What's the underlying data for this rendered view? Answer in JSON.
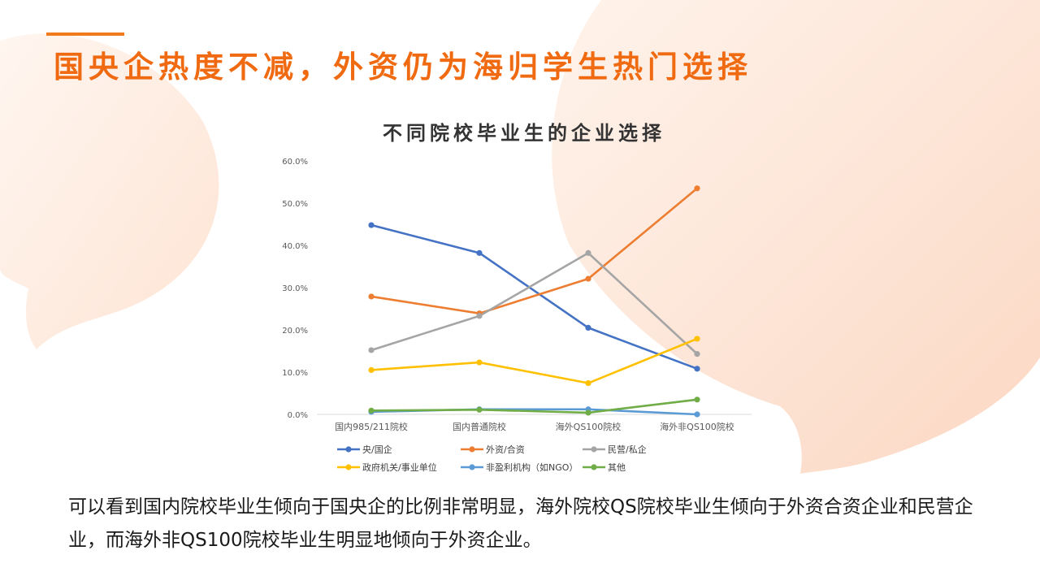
{
  "page": {
    "title": "国央企热度不减，外资仍为海归学生热门选择",
    "summary": "可以看到国内院校毕业生倾向于国央企的比例非常明显，海外院校QS院校毕业生倾向于外资合资企业和民营企业，而海外非QS100院校毕业生明显地倾向于外资企业。"
  },
  "colors": {
    "accent": "#f06a12",
    "blob": "#fde8da"
  },
  "chart_data": {
    "type": "line",
    "title": "不同院校毕业生的企业选择",
    "categories": [
      "国内985/211院校",
      "国内普通院校",
      "海外QS100院校",
      "海外非QS100院校"
    ],
    "y_tick_labels": [
      "0.0%",
      "10.0%",
      "20.0%",
      "30.0%",
      "40.0%",
      "50.0%",
      "60.0%"
    ],
    "ylim": [
      0,
      60
    ],
    "grid": false,
    "legend_position": "bottom",
    "series": [
      {
        "name": "央/国企",
        "color": "#4472c4",
        "values": [
          44.8,
          38.2,
          20.5,
          10.8
        ]
      },
      {
        "name": "外资/合资",
        "color": "#ed7d31",
        "values": [
          27.9,
          23.9,
          32.1,
          53.5
        ]
      },
      {
        "name": "民营/私企",
        "color": "#a5a5a5",
        "values": [
          15.2,
          23.3,
          38.2,
          14.3
        ]
      },
      {
        "name": "政府机关/事业单位",
        "color": "#ffc000",
        "values": [
          10.5,
          12.3,
          7.4,
          17.9
        ]
      },
      {
        "name": "非盈利机构（如NGO）",
        "color": "#5b9bd5",
        "values": [
          0.6,
          1.2,
          1.2,
          0.0
        ]
      },
      {
        "name": "其他",
        "color": "#70ad47",
        "values": [
          0.9,
          1.1,
          0.4,
          3.5
        ]
      }
    ]
  }
}
